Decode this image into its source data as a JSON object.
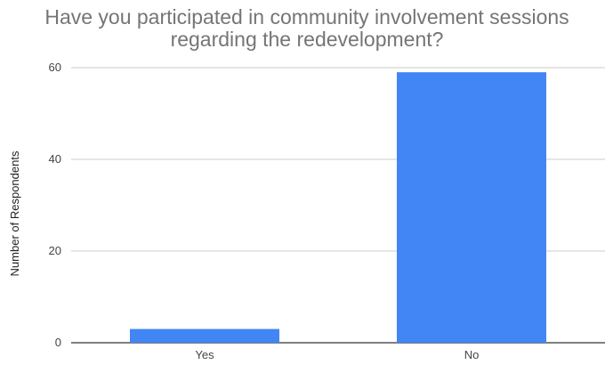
{
  "chart_data": {
    "type": "bar",
    "title_lines": [
      "Have you participated in community involvement sessions",
      "regarding the redevelopment?"
    ],
    "xlabel": "",
    "ylabel": "Number of Respondents",
    "categories": [
      "Yes",
      "No"
    ],
    "values": [
      3,
      59
    ],
    "ylim": [
      0,
      60
    ],
    "yticks": [
      0,
      20,
      40,
      60
    ],
    "grid": true,
    "legend": "none",
    "bar_color": "#4285f4",
    "grid_color": "#cccccc",
    "baseline_color": "#333333"
  }
}
